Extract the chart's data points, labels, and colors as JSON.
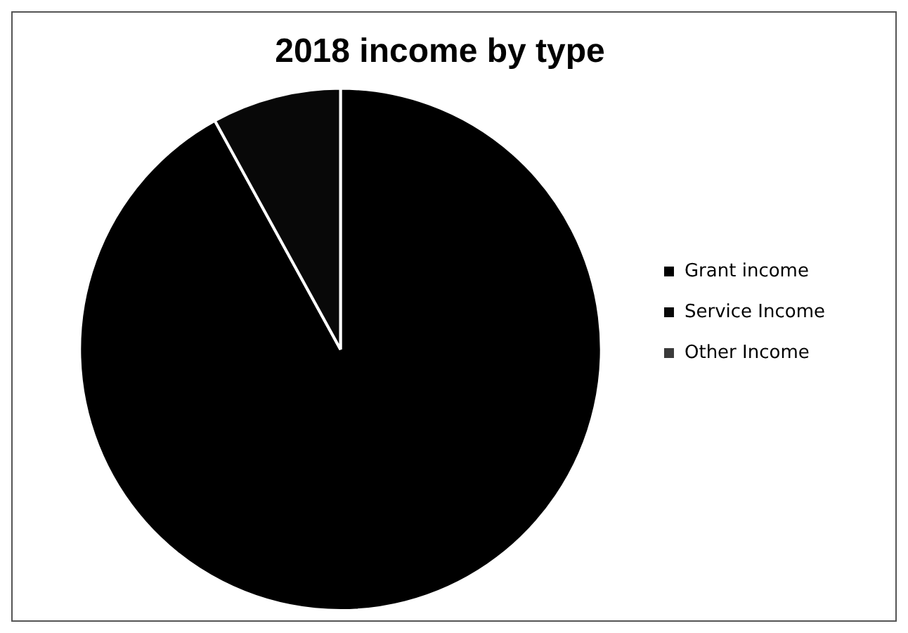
{
  "chart_data": {
    "type": "pie",
    "title": "2018 income by type",
    "categories": [
      "Grant income",
      "Service Income",
      "Other Income"
    ],
    "values": [
      92,
      8,
      0
    ],
    "colors": [
      "#000000",
      "#080808",
      "#3a3a3a"
    ],
    "legend": "right"
  }
}
